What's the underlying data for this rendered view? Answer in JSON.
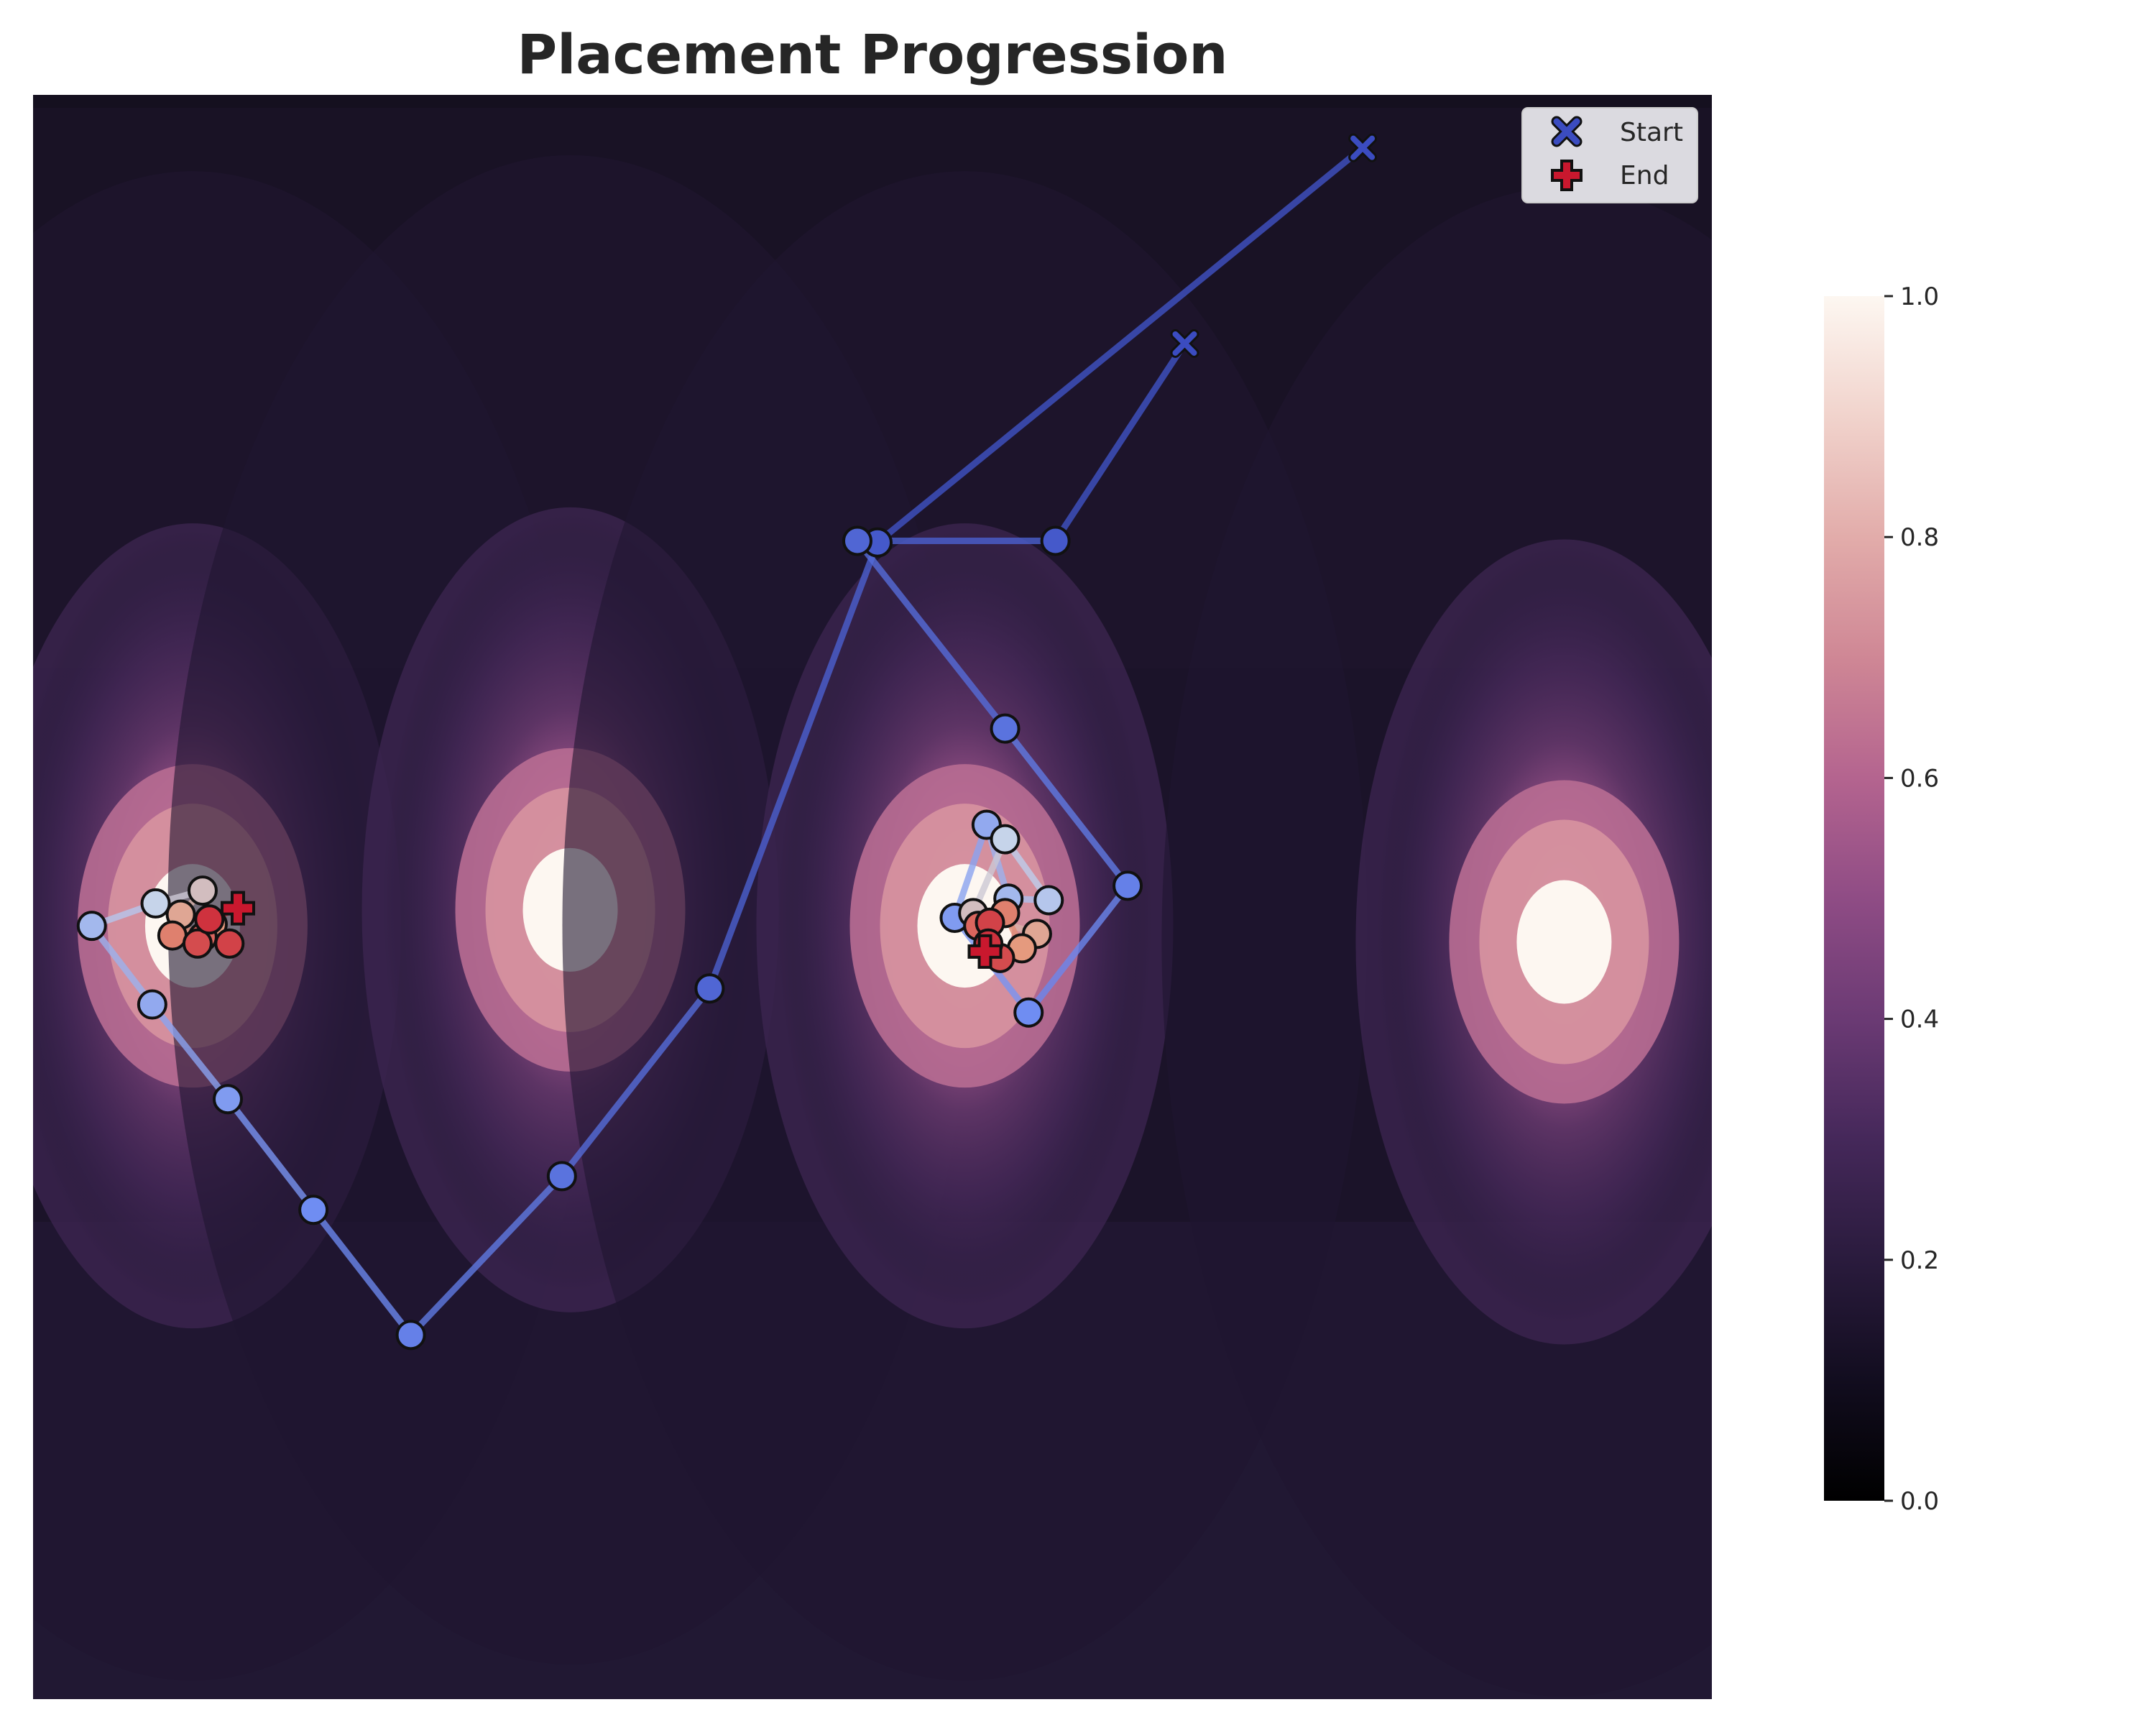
{
  "chart_data": {
    "type": "scatter",
    "title": "Placement Progression",
    "xlabel": "",
    "ylabel": "",
    "xlim": [
      0,
      1
    ],
    "ylim": [
      0,
      1
    ],
    "axes_visible": false,
    "grid": false,
    "background": "heatmap",
    "heatmap_colormap": "rdpu-like (black to purple to pink to white)",
    "heatmap_peaks": [
      {
        "x": 0.095,
        "y": 0.482,
        "intensity": 1.0
      },
      {
        "x": 0.32,
        "y": 0.492,
        "intensity": 1.0
      },
      {
        "x": 0.555,
        "y": 0.482,
        "intensity": 1.0
      },
      {
        "x": 0.912,
        "y": 0.472,
        "intensity": 1.0
      }
    ],
    "legend": {
      "placement": "top-right",
      "entries": [
        {
          "label": "Start",
          "marker": "x",
          "color": "#3b4cc0"
        },
        {
          "label": "End",
          "marker": "plus",
          "color": "#c9182e"
        }
      ]
    },
    "colorbar": {
      "min": 0.0,
      "max": 1.0,
      "ticks": [
        "0.0",
        "0.2",
        "0.4",
        "0.6",
        "0.8",
        "1.0"
      ]
    },
    "series": [
      {
        "points": [
          {
            "x": 0.792,
            "y": 0.967,
            "c": 0.0
          },
          {
            "x": 0.503,
            "y": 0.721,
            "c": 0.05
          },
          {
            "x": 0.403,
            "y": 0.443,
            "c": 0.1
          },
          {
            "x": 0.315,
            "y": 0.326,
            "c": 0.15
          },
          {
            "x": 0.225,
            "y": 0.227,
            "c": 0.2
          },
          {
            "x": 0.167,
            "y": 0.305,
            "c": 0.25
          },
          {
            "x": 0.116,
            "y": 0.374,
            "c": 0.3
          },
          {
            "x": 0.071,
            "y": 0.433,
            "c": 0.35
          },
          {
            "x": 0.035,
            "y": 0.482,
            "c": 0.4
          },
          {
            "x": 0.073,
            "y": 0.496,
            "c": 0.5
          },
          {
            "x": 0.101,
            "y": 0.504,
            "c": 0.6
          },
          {
            "x": 0.088,
            "y": 0.489,
            "c": 0.7
          },
          {
            "x": 0.107,
            "y": 0.483,
            "c": 0.75
          },
          {
            "x": 0.083,
            "y": 0.476,
            "c": 0.8
          },
          {
            "x": 0.101,
            "y": 0.475,
            "c": 0.85
          },
          {
            "x": 0.098,
            "y": 0.471,
            "c": 0.9
          },
          {
            "x": 0.117,
            "y": 0.471,
            "c": 0.92
          },
          {
            "x": 0.105,
            "y": 0.486,
            "c": 0.95
          },
          {
            "x": 0.122,
            "y": 0.493,
            "c": 1.0
          }
        ]
      },
      {
        "points": [
          {
            "x": 0.686,
            "y": 0.845,
            "c": 0.0
          },
          {
            "x": 0.609,
            "y": 0.722,
            "c": 0.05
          },
          {
            "x": 0.491,
            "y": 0.722,
            "c": 0.1
          },
          {
            "x": 0.579,
            "y": 0.605,
            "c": 0.15
          },
          {
            "x": 0.652,
            "y": 0.507,
            "c": 0.2
          },
          {
            "x": 0.593,
            "y": 0.428,
            "c": 0.25
          },
          {
            "x": 0.549,
            "y": 0.487,
            "c": 0.3
          },
          {
            "x": 0.568,
            "y": 0.545,
            "c": 0.35
          },
          {
            "x": 0.581,
            "y": 0.499,
            "c": 0.4
          },
          {
            "x": 0.605,
            "y": 0.498,
            "c": 0.45
          },
          {
            "x": 0.579,
            "y": 0.536,
            "c": 0.5
          },
          {
            "x": 0.56,
            "y": 0.49,
            "c": 0.6
          },
          {
            "x": 0.598,
            "y": 0.477,
            "c": 0.7
          },
          {
            "x": 0.589,
            "y": 0.468,
            "c": 0.75
          },
          {
            "x": 0.579,
            "y": 0.49,
            "c": 0.8
          },
          {
            "x": 0.563,
            "y": 0.482,
            "c": 0.85
          },
          {
            "x": 0.576,
            "y": 0.462,
            "c": 0.9
          },
          {
            "x": 0.57,
            "y": 0.484,
            "c": 0.92
          },
          {
            "x": 0.569,
            "y": 0.471,
            "c": 0.95
          },
          {
            "x": 0.567,
            "y": 0.466,
            "c": 1.0
          }
        ]
      }
    ]
  }
}
